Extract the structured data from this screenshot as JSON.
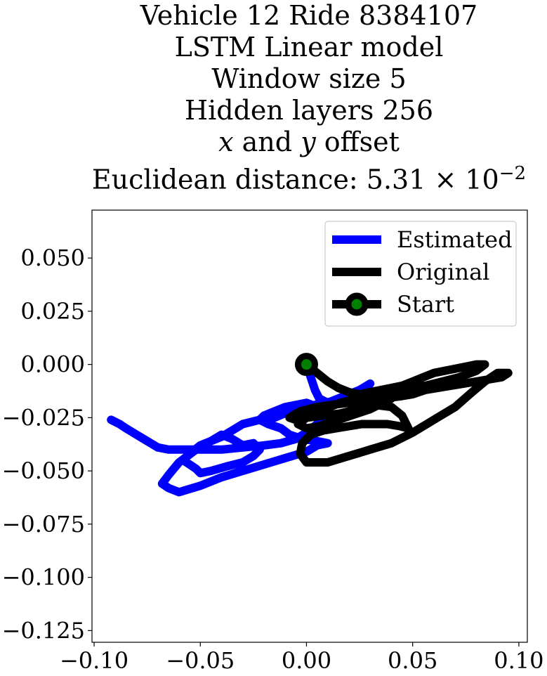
{
  "chart_data": {
    "type": "line",
    "title_lines": [
      "Vehicle 12 Ride 8384107",
      "LSTM Linear model",
      "Window size 5",
      "Hidden layers 256"
    ],
    "title_offset_line": {
      "x": "x",
      "and": " and ",
      "y": "y",
      "rest": " offset"
    },
    "title_distance_line": {
      "prefix": "Euclidean distance: 5.31 × 10",
      "exponent": "−2"
    },
    "xlim": [
      -0.101,
      0.104
    ],
    "ylim": [
      -0.1305,
      0.0725
    ],
    "xticks": [
      -0.1,
      -0.05,
      0.0,
      0.05,
      0.1
    ],
    "xtick_labels": [
      "−0.10",
      "−0.05",
      "0.00",
      "0.05",
      "0.10"
    ],
    "yticks": [
      0.05,
      0.025,
      0.0,
      -0.025,
      -0.05,
      -0.075,
      -0.1,
      -0.125
    ],
    "ytick_labels": [
      "0.050",
      "0.025",
      "0.000",
      "−0.025",
      "−0.050",
      "−0.075",
      "−0.100",
      "−0.125"
    ],
    "legend_position": "top-right",
    "legend": [
      "Estimated",
      "Original",
      "Start"
    ],
    "colors": {
      "estimated": "#0000ff",
      "original": "#000000",
      "start_marker_face": "#008000",
      "start_marker_edge": "#000000"
    },
    "series": [
      {
        "name": "Estimated",
        "x": [
          0.0,
          0.002,
          0.004,
          0.006,
          0.01,
          0.015,
          0.02,
          0.025,
          0.03,
          0.028,
          0.022,
          0.015,
          0.008,
          0.0,
          -0.008,
          -0.015,
          -0.022,
          -0.03,
          -0.035,
          -0.04,
          -0.045,
          -0.05,
          -0.055,
          -0.058,
          -0.055,
          -0.052,
          -0.05,
          -0.045,
          -0.038,
          -0.03,
          -0.025,
          -0.022,
          -0.025,
          -0.03,
          -0.035,
          -0.04,
          -0.045,
          -0.052,
          -0.06,
          -0.065,
          -0.068,
          -0.065,
          -0.06,
          -0.05,
          -0.04,
          -0.03,
          -0.02,
          -0.01,
          0.0,
          0.005,
          0.01,
          0.005,
          -0.002,
          -0.008,
          -0.012,
          -0.018,
          -0.022,
          -0.02,
          -0.015,
          -0.01,
          -0.005,
          0.0,
          0.005,
          0.008,
          0.005,
          0.0,
          -0.005,
          -0.012,
          -0.02,
          -0.03,
          -0.04,
          -0.05,
          -0.058,
          -0.065,
          -0.07,
          -0.075,
          -0.08,
          -0.085,
          -0.088,
          -0.092
        ],
        "y": [
          0.0,
          -0.006,
          -0.012,
          -0.016,
          -0.018,
          -0.016,
          -0.014,
          -0.012,
          -0.009,
          -0.012,
          -0.015,
          -0.017,
          -0.018,
          -0.02,
          -0.022,
          -0.025,
          -0.026,
          -0.028,
          -0.031,
          -0.034,
          -0.036,
          -0.038,
          -0.042,
          -0.045,
          -0.047,
          -0.049,
          -0.051,
          -0.05,
          -0.048,
          -0.046,
          -0.043,
          -0.04,
          -0.037,
          -0.038,
          -0.035,
          -0.033,
          -0.036,
          -0.04,
          -0.046,
          -0.052,
          -0.056,
          -0.058,
          -0.06,
          -0.057,
          -0.053,
          -0.05,
          -0.047,
          -0.044,
          -0.041,
          -0.038,
          -0.037,
          -0.036,
          -0.035,
          -0.033,
          -0.03,
          -0.028,
          -0.026,
          -0.024,
          -0.022,
          -0.02,
          -0.019,
          -0.018,
          -0.02,
          -0.024,
          -0.028,
          -0.032,
          -0.035,
          -0.037,
          -0.038,
          -0.039,
          -0.04,
          -0.04,
          -0.04,
          -0.04,
          -0.039,
          -0.036,
          -0.033,
          -0.03,
          -0.028,
          -0.026
        ]
      },
      {
        "name": "Original",
        "x": [
          0.0,
          0.005,
          0.01,
          0.015,
          0.02,
          0.025,
          0.03,
          0.035,
          0.04,
          0.045,
          0.05,
          0.055,
          0.06,
          0.065,
          0.07,
          0.075,
          0.08,
          0.084,
          0.08,
          0.072,
          0.064,
          0.056,
          0.048,
          0.04,
          0.032,
          0.024,
          0.016,
          0.008,
          0.0,
          -0.005,
          -0.008,
          -0.003,
          0.005,
          0.012,
          0.02,
          0.028,
          0.036,
          0.044,
          0.05,
          0.056,
          0.062,
          0.068,
          0.074,
          0.08,
          0.086,
          0.092,
          0.095,
          0.09,
          0.084,
          0.078,
          0.07,
          0.06,
          0.05,
          0.04,
          0.03,
          0.02,
          0.01,
          0.0,
          -0.003,
          -0.002,
          0.002,
          0.008,
          0.014,
          0.02,
          0.026,
          0.032,
          0.038,
          0.044,
          0.048,
          0.045,
          0.04,
          0.032,
          0.024,
          0.016,
          0.008,
          0.0,
          -0.004,
          0.0,
          0.006,
          0.012,
          0.018,
          0.024,
          0.03,
          0.036,
          0.04
        ],
        "y": [
          0.0,
          -0.004,
          -0.008,
          -0.011,
          -0.013,
          -0.014,
          -0.013,
          -0.012,
          -0.011,
          -0.01,
          -0.008,
          -0.006,
          -0.004,
          -0.003,
          -0.002,
          -0.001,
          0.0,
          0.0,
          -0.003,
          -0.006,
          -0.008,
          -0.01,
          -0.011,
          -0.012,
          -0.014,
          -0.016,
          -0.018,
          -0.021,
          -0.024,
          -0.026,
          -0.025,
          -0.022,
          -0.02,
          -0.019,
          -0.018,
          -0.017,
          -0.016,
          -0.015,
          -0.014,
          -0.012,
          -0.011,
          -0.01,
          -0.009,
          -0.008,
          -0.007,
          -0.006,
          -0.004,
          -0.004,
          -0.008,
          -0.013,
          -0.02,
          -0.026,
          -0.032,
          -0.037,
          -0.04,
          -0.043,
          -0.046,
          -0.046,
          -0.042,
          -0.037,
          -0.033,
          -0.031,
          -0.03,
          -0.029,
          -0.028,
          -0.028,
          -0.028,
          -0.029,
          -0.03,
          -0.024,
          -0.02,
          -0.019,
          -0.021,
          -0.023,
          -0.024,
          -0.025,
          -0.028,
          -0.03,
          -0.029,
          -0.027,
          -0.025,
          -0.023,
          -0.021,
          -0.018,
          -0.016
        ]
      }
    ],
    "start_point": {
      "x": 0.0,
      "y": 0.0
    }
  }
}
